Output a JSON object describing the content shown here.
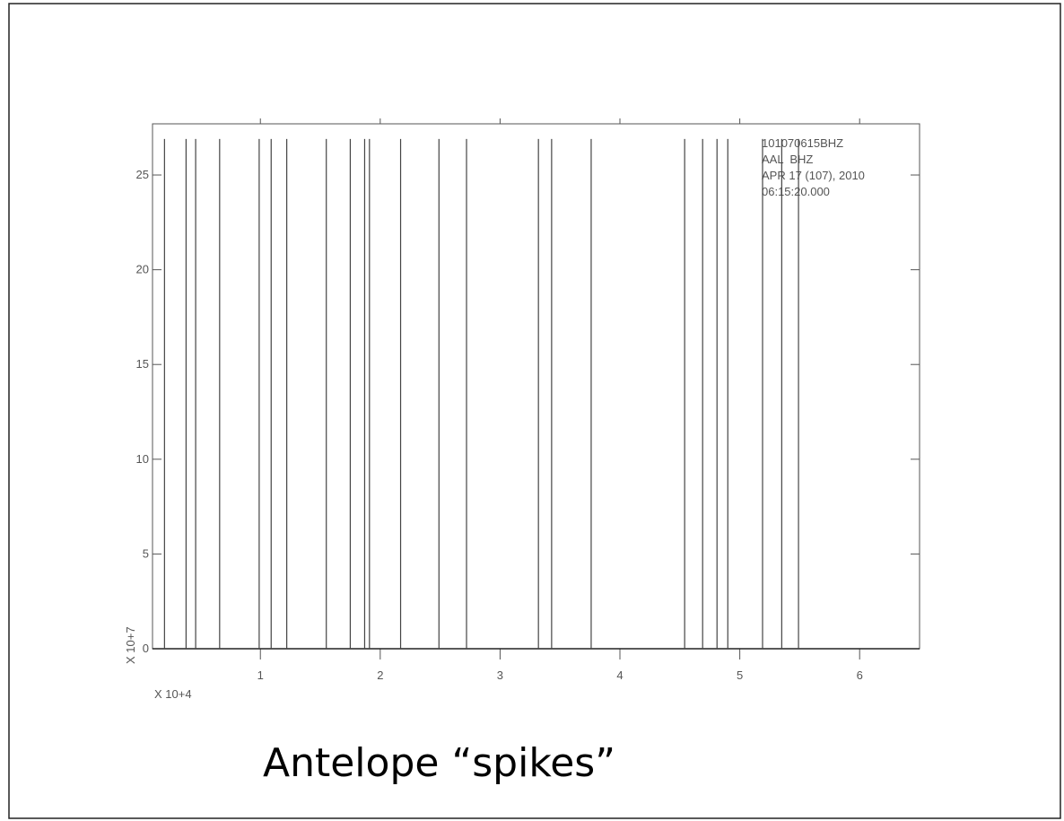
{
  "chart_data": {
    "type": "stem",
    "x": [
      0.2,
      0.38,
      0.46,
      0.66,
      0.99,
      1.09,
      1.22,
      1.55,
      1.75,
      1.87,
      1.91,
      2.17,
      2.49,
      2.72,
      3.32,
      3.43,
      3.76,
      4.54,
      4.69,
      4.81,
      4.9,
      5.19,
      5.35,
      5.49
    ],
    "values": [
      26.9,
      26.9,
      26.9,
      26.9,
      26.9,
      26.9,
      26.9,
      26.9,
      26.9,
      26.9,
      26.9,
      26.9,
      26.9,
      26.9,
      26.9,
      26.9,
      26.9,
      26.9,
      26.9,
      26.9,
      26.9,
      26.9,
      26.9,
      26.9
    ],
    "color": "#444444",
    "xlim": [
      0.1,
      6.5
    ],
    "ylim": [
      0,
      27.7
    ],
    "xticks": [
      1,
      2,
      3,
      4,
      5,
      6
    ],
    "yticks": [
      0,
      5,
      10,
      15,
      20,
      25
    ],
    "x_multiplier": "X 10+4",
    "y_multiplier": "X 10+7",
    "annotations": [
      "101070615BHZ",
      "AAL  BHZ",
      "APR 17 (107), 2010",
      "06:15:20.000"
    ],
    "caption": "Antelope “spikes”"
  }
}
